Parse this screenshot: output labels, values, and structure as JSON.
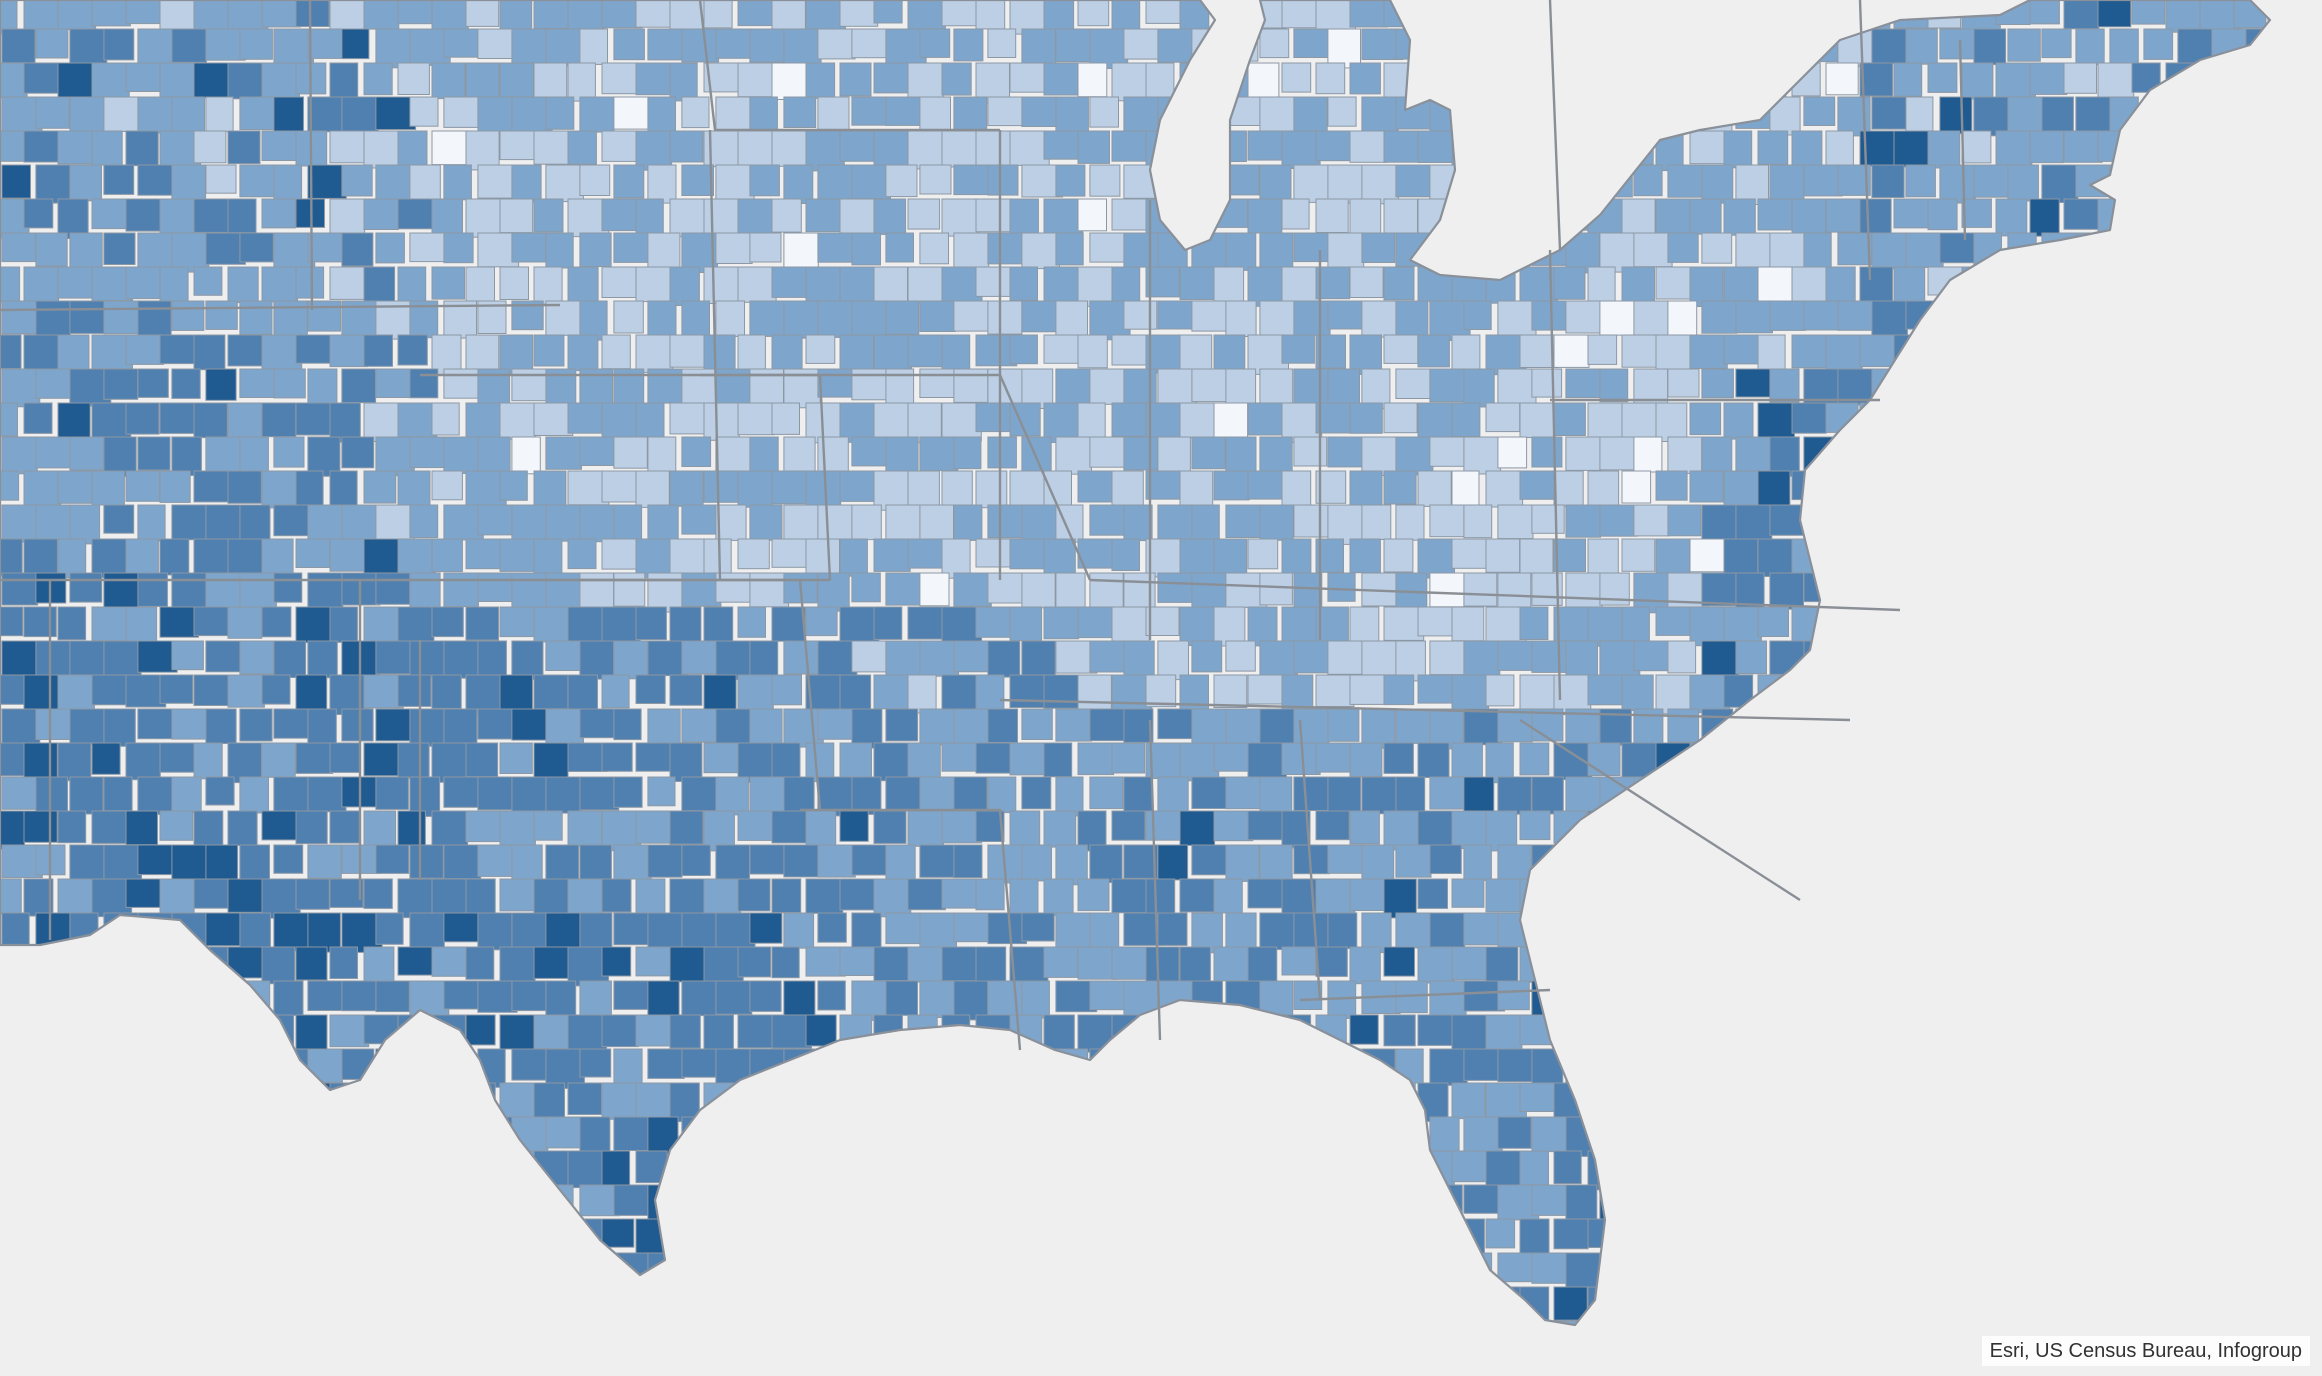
{
  "map": {
    "attribution": "Esri, US Census Bureau, Infogroup",
    "colors": {
      "background": "#efefef",
      "class_1": "#f3f6fa",
      "class_2": "#bccfe4",
      "class_3": "#7ea6cc",
      "class_4": "#4f80b0",
      "class_5": "#1f5a90"
    }
  }
}
